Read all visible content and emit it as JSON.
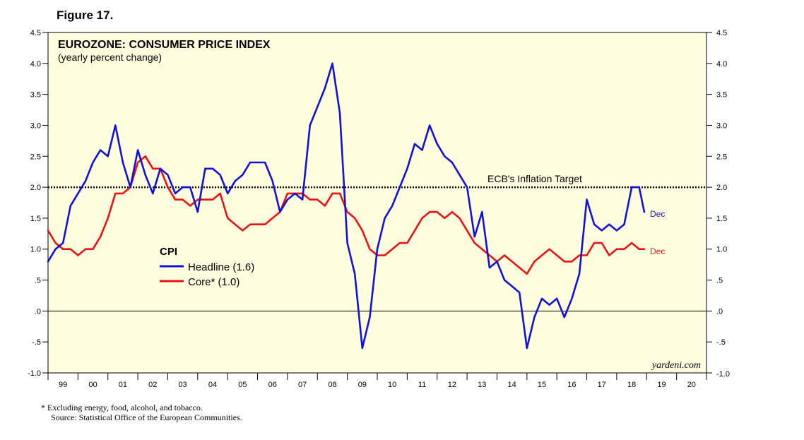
{
  "figure_label": "Figure 17.",
  "footnote": "*   Excluding energy, food, alcohol, and tobacco.",
  "source": "Source: Statistical Office of the European Communities.",
  "colors": {
    "headline": "#1111dd",
    "core": "#ee1111",
    "plot_bg": "#ffffe0"
  },
  "chart_data": {
    "type": "line",
    "title": "EUROZONE: CONSUMER PRICE INDEX",
    "subtitle": "(yearly percent change)",
    "watermark": "yardeni.com",
    "ylim": [
      -1.0,
      4.5
    ],
    "y_ticks": [
      "4.5",
      "4.0",
      "3.5",
      "3.0",
      "2.5",
      "2.0",
      "1.5",
      "1.0",
      ".5",
      ".0",
      "-.5",
      "-1.0"
    ],
    "y_tick_values": [
      4.5,
      4.0,
      3.5,
      3.0,
      2.5,
      2.0,
      1.5,
      1.0,
      0.5,
      0.0,
      -0.5,
      -1.0
    ],
    "xlim": [
      1999,
      2021
    ],
    "x_ticks": [
      "99",
      "00",
      "01",
      "02",
      "03",
      "04",
      "05",
      "06",
      "07",
      "08",
      "09",
      "10",
      "11",
      "12",
      "13",
      "14",
      "15",
      "16",
      "17",
      "18",
      "19",
      "20"
    ],
    "grid": false,
    "legend_title": "CPI",
    "legend_position": "left-middle",
    "target_line": {
      "value": 2.0,
      "label": "ECB's Inflation Target"
    },
    "series": [
      {
        "name": "Headline (1.6)",
        "end_label": "Dec",
        "x": [
          1999.0,
          1999.25,
          1999.5,
          1999.75,
          2000.0,
          2000.25,
          2000.5,
          2000.75,
          2001.0,
          2001.25,
          2001.5,
          2001.75,
          2002.0,
          2002.25,
          2002.5,
          2002.75,
          2003.0,
          2003.25,
          2003.5,
          2003.75,
          2004.0,
          2004.25,
          2004.5,
          2004.75,
          2005.0,
          2005.25,
          2005.5,
          2005.75,
          2006.0,
          2006.25,
          2006.5,
          2006.75,
          2007.0,
          2007.25,
          2007.5,
          2007.75,
          2008.0,
          2008.25,
          2008.5,
          2008.75,
          2009.0,
          2009.25,
          2009.5,
          2009.75,
          2010.0,
          2010.25,
          2010.5,
          2010.75,
          2011.0,
          2011.25,
          2011.5,
          2011.75,
          2012.0,
          2012.25,
          2012.5,
          2012.75,
          2013.0,
          2013.25,
          2013.5,
          2013.75,
          2014.0,
          2014.25,
          2014.5,
          2014.75,
          2015.0,
          2015.25,
          2015.5,
          2015.75,
          2016.0,
          2016.25,
          2016.5,
          2016.75,
          2017.0,
          2017.25,
          2017.5,
          2017.75,
          2018.0,
          2018.25,
          2018.5,
          2018.75,
          2018.92
        ],
        "values": [
          0.8,
          1.0,
          1.1,
          1.7,
          1.9,
          2.1,
          2.4,
          2.6,
          2.5,
          3.0,
          2.4,
          2.0,
          2.6,
          2.2,
          1.9,
          2.3,
          2.2,
          1.9,
          2.0,
          2.0,
          1.6,
          2.3,
          2.3,
          2.2,
          1.9,
          2.1,
          2.2,
          2.4,
          2.4,
          2.4,
          2.1,
          1.6,
          1.8,
          1.9,
          1.8,
          3.0,
          3.3,
          3.6,
          4.0,
          3.2,
          1.1,
          0.6,
          -0.6,
          -0.1,
          1.0,
          1.5,
          1.7,
          2.0,
          2.3,
          2.7,
          2.6,
          3.0,
          2.7,
          2.5,
          2.4,
          2.2,
          2.0,
          1.2,
          1.6,
          0.7,
          0.8,
          0.5,
          0.4,
          0.3,
          -0.6,
          -0.1,
          0.2,
          0.1,
          0.2,
          -0.1,
          0.2,
          0.6,
          1.8,
          1.4,
          1.3,
          1.4,
          1.3,
          1.4,
          2.0,
          2.0,
          1.6
        ]
      },
      {
        "name": "Core* (1.0)",
        "end_label": "Dec",
        "x": [
          1999.0,
          1999.25,
          1999.5,
          1999.75,
          2000.0,
          2000.25,
          2000.5,
          2000.75,
          2001.0,
          2001.25,
          2001.5,
          2001.75,
          2002.0,
          2002.25,
          2002.5,
          2002.75,
          2003.0,
          2003.25,
          2003.5,
          2003.75,
          2004.0,
          2004.25,
          2004.5,
          2004.75,
          2005.0,
          2005.25,
          2005.5,
          2005.75,
          2006.0,
          2006.25,
          2006.5,
          2006.75,
          2007.0,
          2007.25,
          2007.5,
          2007.75,
          2008.0,
          2008.25,
          2008.5,
          2008.75,
          2009.0,
          2009.25,
          2009.5,
          2009.75,
          2010.0,
          2010.25,
          2010.5,
          2010.75,
          2011.0,
          2011.25,
          2011.5,
          2011.75,
          2012.0,
          2012.25,
          2012.5,
          2012.75,
          2013.0,
          2013.25,
          2013.5,
          2013.75,
          2014.0,
          2014.25,
          2014.5,
          2014.75,
          2015.0,
          2015.25,
          2015.5,
          2015.75,
          2016.0,
          2016.25,
          2016.5,
          2016.75,
          2017.0,
          2017.25,
          2017.5,
          2017.75,
          2018.0,
          2018.25,
          2018.5,
          2018.75,
          2018.92
        ],
        "values": [
          1.3,
          1.1,
          1.0,
          1.0,
          0.9,
          1.0,
          1.0,
          1.2,
          1.5,
          1.9,
          1.9,
          2.0,
          2.4,
          2.5,
          2.3,
          2.3,
          2.0,
          1.8,
          1.8,
          1.7,
          1.8,
          1.8,
          1.8,
          1.9,
          1.5,
          1.4,
          1.3,
          1.4,
          1.4,
          1.4,
          1.5,
          1.6,
          1.9,
          1.9,
          1.9,
          1.8,
          1.8,
          1.7,
          1.9,
          1.9,
          1.6,
          1.5,
          1.3,
          1.0,
          0.9,
          0.9,
          1.0,
          1.1,
          1.1,
          1.3,
          1.5,
          1.6,
          1.6,
          1.5,
          1.6,
          1.5,
          1.3,
          1.1,
          1.0,
          0.9,
          0.8,
          0.9,
          0.8,
          0.7,
          0.6,
          0.8,
          0.9,
          1.0,
          0.9,
          0.8,
          0.8,
          0.9,
          0.9,
          1.1,
          1.1,
          0.9,
          1.0,
          1.0,
          1.1,
          1.0,
          1.0
        ]
      }
    ]
  }
}
